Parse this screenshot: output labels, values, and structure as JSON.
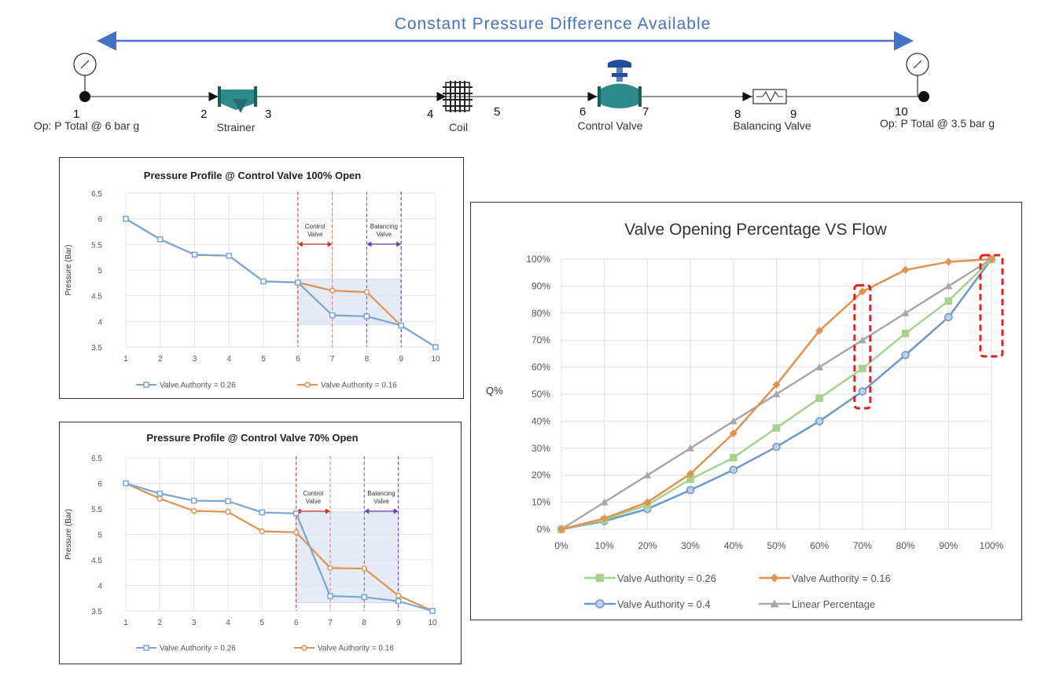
{
  "schematic": {
    "title": "Constant Pressure Difference Available",
    "nodes": [
      "1",
      "2",
      "3",
      "4",
      "5",
      "6",
      "7",
      "8",
      "9",
      "10"
    ],
    "components": {
      "inlet": "Op: P Total @ 6 bar g",
      "strainer": "Strainer",
      "coil": "Coil",
      "control_valve": "Control Valve",
      "balancing_valve": "Balancing Valve",
      "outlet": "Op: P Total @ 3.5 bar g"
    },
    "colors": {
      "arrow": "#4472c4",
      "line": "#555555",
      "valve": "#2e8b8b",
      "actuator": "#1f4e9c"
    }
  },
  "chart_data": [
    {
      "type": "line",
      "title": "Pressure Profile @ Control Valve 100% Open",
      "xlabel": "",
      "ylabel": "Pressure (Bar)",
      "ylim": [
        3.5,
        6.5
      ],
      "yticks": [
        "3.5",
        "4",
        "4.5",
        "5",
        "5.5",
        "6",
        "6.5"
      ],
      "categories": [
        "1",
        "2",
        "3",
        "4",
        "5",
        "6",
        "7",
        "8",
        "9",
        "10"
      ],
      "series": [
        {
          "name": "Valve Authority = 0.26",
          "color": "#7ba6d4",
          "marker": "square",
          "values": [
            6.0,
            5.6,
            5.3,
            5.28,
            4.78,
            4.76,
            4.12,
            4.1,
            3.92,
            3.5
          ]
        },
        {
          "name": "Valve Authority = 0.16",
          "color": "#e0924f",
          "marker": "circle",
          "values": [
            6.0,
            5.6,
            5.3,
            5.28,
            4.78,
            4.76,
            4.6,
            4.57,
            3.92,
            3.5
          ]
        }
      ],
      "annotations": {
        "control_valve": [
          "Control",
          "Valve"
        ],
        "balancing_valve": [
          "Balancing",
          "Valve"
        ]
      },
      "shade_range": [
        4.82,
        3.94
      ]
    },
    {
      "type": "line",
      "title": "Pressure Profile @ Control Valve 70% Open",
      "xlabel": "",
      "ylabel": "Pressure (Bar)",
      "ylim": [
        3.5,
        6.5
      ],
      "yticks": [
        "3.5",
        "4",
        "4.5",
        "5",
        "5.5",
        "6",
        "6.5"
      ],
      "categories": [
        "1",
        "2",
        "3",
        "4",
        "5",
        "6",
        "7",
        "8",
        "9",
        "10"
      ],
      "series": [
        {
          "name": "Valve Authority = 0.26",
          "color": "#7ba6d4",
          "marker": "square",
          "values": [
            6.0,
            5.8,
            5.66,
            5.65,
            5.43,
            5.41,
            3.79,
            3.77,
            3.69,
            3.5
          ]
        },
        {
          "name": "Valve Authority = 0.16",
          "color": "#e0924f",
          "marker": "circle",
          "values": [
            6.0,
            5.7,
            5.46,
            5.44,
            5.06,
            5.04,
            4.34,
            4.33,
            3.8,
            3.5
          ]
        }
      ],
      "annotations": {
        "control_valve": [
          "Control",
          "Valve"
        ],
        "balancing_valve": [
          "Balancing",
          "Valve"
        ]
      },
      "shade_range": [
        5.44,
        3.66
      ]
    },
    {
      "type": "line",
      "title": "Valve Opening Percentage VS Flow",
      "xlabel": "",
      "ylabel": "Q%",
      "ylim": [
        0,
        100
      ],
      "yticks": [
        "0%",
        "10%",
        "20%",
        "30%",
        "40%",
        "50%",
        "60%",
        "70%",
        "80%",
        "90%",
        "100%"
      ],
      "categories": [
        "0%",
        "10%",
        "20%",
        "30%",
        "40%",
        "50%",
        "60%",
        "70%",
        "80%",
        "90%",
        "100%"
      ],
      "series": [
        {
          "name": "Valve Authority = 0.26",
          "color": "#a9d18e",
          "marker": "square",
          "values": [
            0,
            3.5,
            9,
            18.5,
            26.5,
            37.5,
            48.5,
            59.5,
            72.5,
            84.5,
            100
          ]
        },
        {
          "name": "Valve Authority = 0.16",
          "color": "#e0924f",
          "marker": "diamond",
          "values": [
            0,
            4,
            10,
            20.5,
            35.5,
            53.5,
            73.5,
            88,
            96,
            99,
            100
          ]
        },
        {
          "name": "Valve Authority = 0.4",
          "color": "#6e97c9",
          "marker": "circle",
          "values": [
            0,
            3,
            7.5,
            14.5,
            22,
            30.5,
            40,
            51,
            64.5,
            78.5,
            100
          ]
        },
        {
          "name": "Linear Percentage",
          "color": "#a8a8a8",
          "marker": "triangle",
          "values": [
            0,
            10,
            20,
            30,
            40,
            50,
            60,
            70,
            80,
            90,
            100
          ]
        }
      ],
      "highlights": [
        "70%",
        "100%"
      ]
    }
  ]
}
